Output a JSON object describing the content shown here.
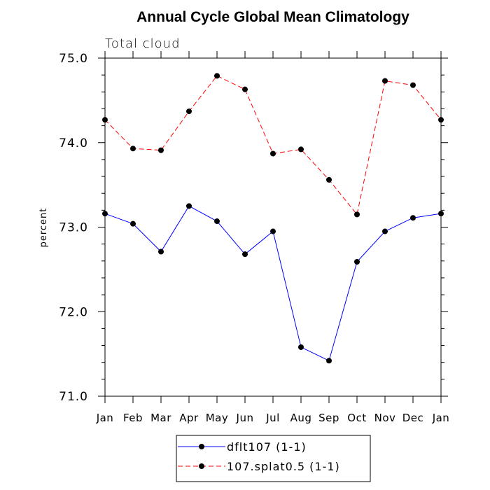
{
  "chart_data": {
    "type": "line",
    "title": "Annual Cycle Global Mean Climatology",
    "subtitle": "Total cloud",
    "ylabel": "percent",
    "xlabel": "",
    "categories": [
      "Jan",
      "Feb",
      "Mar",
      "Apr",
      "May",
      "Jun",
      "Jul",
      "Aug",
      "Sep",
      "Oct",
      "Nov",
      "Dec",
      "Jan"
    ],
    "ylim": [
      71.0,
      75.0
    ],
    "yticks": [
      71.0,
      72.0,
      73.0,
      74.0,
      75.0
    ],
    "ytick_labels": [
      "71.0",
      "72.0",
      "73.0",
      "74.0",
      "75.0"
    ],
    "series": [
      {
        "name": "dflt107 (1-1)",
        "color": "#0000ff",
        "dash": "solid",
        "values": [
          73.16,
          73.04,
          72.71,
          73.25,
          73.07,
          72.68,
          72.95,
          71.58,
          71.42,
          72.59,
          72.95,
          73.11,
          73.16
        ]
      },
      {
        "name": "107.splat0.5 (1-1)",
        "color": "#ff0000",
        "dash": "dashed",
        "values": [
          74.27,
          73.93,
          73.91,
          74.37,
          74.79,
          74.63,
          73.87,
          73.92,
          73.56,
          73.15,
          74.73,
          74.68,
          74.27
        ]
      }
    ],
    "legend": "bottom"
  }
}
